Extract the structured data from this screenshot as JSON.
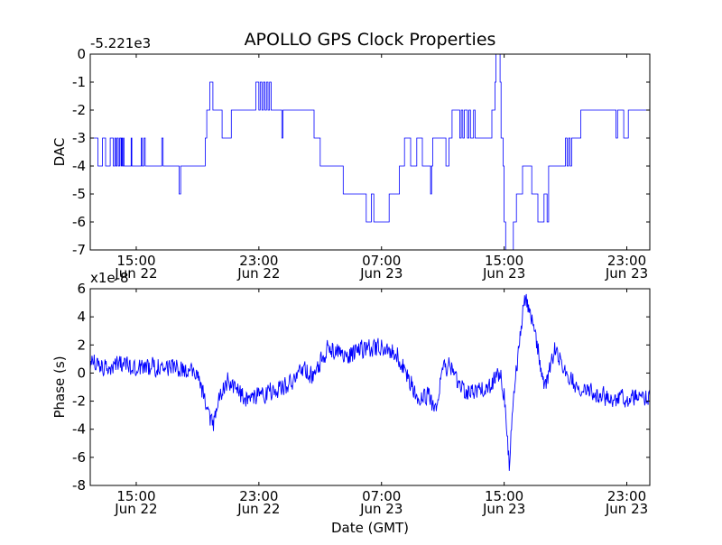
{
  "figure": {
    "title": "APOLLO GPS Clock Properties",
    "xlabel": "Date (GMT)"
  },
  "chart_data": [
    {
      "type": "line",
      "title": "APOLLO GPS Clock Properties",
      "ylabel": "DAC",
      "offset_label": "-5.221e3",
      "ylim": [
        -7,
        0
      ],
      "yticks": [
        0,
        -1,
        -2,
        -3,
        -4,
        -5,
        -6,
        -7
      ],
      "ytick_labels": [
        "0",
        "-1",
        "-2",
        "-3",
        "-4",
        "-5",
        "-6",
        "-7"
      ],
      "xlim": [
        "2010-06-22 12:00",
        "2010-06-24 00:30"
      ],
      "xticks": [
        {
          "x": "2010-06-22 15:00",
          "line1": "15:00",
          "line2": "Jun 22"
        },
        {
          "x": "2010-06-22 23:00",
          "line1": "23:00",
          "line2": "Jun 22"
        },
        {
          "x": "2010-06-23 07:00",
          "line1": "07:00",
          "line2": "Jun 23"
        },
        {
          "x": "2010-06-23 15:00",
          "line1": "15:00",
          "line2": "Jun 23"
        },
        {
          "x": "2010-06-23 23:00",
          "line1": "23:00",
          "line2": "Jun 23"
        }
      ],
      "color": "#0000ff",
      "grid": false,
      "series": [
        {
          "step": true,
          "points": [
            [
              "2010-06-22 12:06",
              -3
            ],
            [
              "2010-06-22 12:30",
              -4
            ],
            [
              "2010-06-22 12:48",
              -3
            ],
            [
              "2010-06-22 13:00",
              -4
            ],
            [
              "2010-06-22 13:18",
              -3
            ],
            [
              "2010-06-22 13:30",
              -4
            ],
            [
              "2010-06-22 13:36",
              -3
            ],
            [
              "2010-06-22 13:40",
              -4
            ],
            [
              "2010-06-22 13:45",
              -3
            ],
            [
              "2010-06-22 13:50",
              -4
            ],
            [
              "2010-06-22 13:55",
              -3
            ],
            [
              "2010-06-22 14:00",
              -4
            ],
            [
              "2010-06-22 14:03",
              -3
            ],
            [
              "2010-06-22 14:06",
              -4
            ],
            [
              "2010-06-22 14:10",
              -3
            ],
            [
              "2010-06-22 14:12",
              -4
            ],
            [
              "2010-06-22 14:40",
              -3
            ],
            [
              "2010-06-22 14:43",
              -4
            ],
            [
              "2010-06-22 15:20",
              -3
            ],
            [
              "2010-06-22 15:23",
              -4
            ],
            [
              "2010-06-22 15:30",
              -3
            ],
            [
              "2010-06-22 15:35",
              -4
            ],
            [
              "2010-06-22 16:40",
              -3
            ],
            [
              "2010-06-22 16:45",
              -4
            ],
            [
              "2010-06-22 17:48",
              -5
            ],
            [
              "2010-06-22 17:54",
              -4
            ],
            [
              "2010-06-22 19:30",
              -3
            ],
            [
              "2010-06-22 19:36",
              -2
            ],
            [
              "2010-06-22 19:48",
              -1
            ],
            [
              "2010-06-22 20:00",
              -2
            ],
            [
              "2010-06-22 20:36",
              -3
            ],
            [
              "2010-06-22 21:12",
              -2
            ],
            [
              "2010-06-22 22:48",
              -1
            ],
            [
              "2010-06-22 23:00",
              -2
            ],
            [
              "2010-06-22 23:05",
              -1
            ],
            [
              "2010-06-22 23:12",
              -2
            ],
            [
              "2010-06-22 23:18",
              -1
            ],
            [
              "2010-06-22 23:24",
              -2
            ],
            [
              "2010-06-22 23:30",
              -1
            ],
            [
              "2010-06-22 23:36",
              -2
            ],
            [
              "2010-06-22 23:42",
              -1
            ],
            [
              "2010-06-22 23:48",
              -2
            ],
            [
              "2010-06-23 00:30",
              -3
            ],
            [
              "2010-06-23 00:34",
              -2
            ],
            [
              "2010-06-23 02:36",
              -3
            ],
            [
              "2010-06-23 03:00",
              -4
            ],
            [
              "2010-06-23 04:30",
              -5
            ],
            [
              "2010-06-23 06:00",
              -6
            ],
            [
              "2010-06-23 06:20",
              -5
            ],
            [
              "2010-06-23 06:30",
              -6
            ],
            [
              "2010-06-23 07:30",
              -5
            ],
            [
              "2010-06-23 08:10",
              -4
            ],
            [
              "2010-06-23 08:30",
              -3
            ],
            [
              "2010-06-23 08:54",
              -4
            ],
            [
              "2010-06-23 09:18",
              -3
            ],
            [
              "2010-06-23 09:40",
              -4
            ],
            [
              "2010-06-23 10:12",
              -5
            ],
            [
              "2010-06-23 10:16",
              -4
            ],
            [
              "2010-06-23 10:20",
              -3
            ],
            [
              "2010-06-23 11:12",
              -4
            ],
            [
              "2010-06-23 11:24",
              -3
            ],
            [
              "2010-06-23 11:36",
              -2
            ],
            [
              "2010-06-23 12:06",
              -3
            ],
            [
              "2010-06-23 12:12",
              -2
            ],
            [
              "2010-06-23 12:18",
              -3
            ],
            [
              "2010-06-23 12:24",
              -2
            ],
            [
              "2010-06-23 12:36",
              -3
            ],
            [
              "2010-06-23 12:42",
              -2
            ],
            [
              "2010-06-23 12:48",
              -3
            ],
            [
              "2010-06-23 13:00",
              -2
            ],
            [
              "2010-06-23 13:06",
              -3
            ],
            [
              "2010-06-23 14:12",
              -2
            ],
            [
              "2010-06-23 14:24",
              -1
            ],
            [
              "2010-06-23 14:28",
              0
            ],
            [
              "2010-06-23 14:44",
              -1
            ],
            [
              "2010-06-23 14:48",
              -3
            ],
            [
              "2010-06-23 14:56",
              -4
            ],
            [
              "2010-06-23 15:00",
              -6
            ],
            [
              "2010-06-23 15:06",
              -7
            ],
            [
              "2010-06-23 15:36",
              -6
            ],
            [
              "2010-06-23 15:48",
              -5
            ],
            [
              "2010-06-23 16:12",
              -4
            ],
            [
              "2010-06-23 16:48",
              -5
            ],
            [
              "2010-06-23 17:12",
              -6
            ],
            [
              "2010-06-23 17:36",
              -5
            ],
            [
              "2010-06-23 17:48",
              -6
            ],
            [
              "2010-06-23 17:54",
              -4
            ],
            [
              "2010-06-23 19:00",
              -3
            ],
            [
              "2010-06-23 19:06",
              -4
            ],
            [
              "2010-06-23 19:12",
              -3
            ],
            [
              "2010-06-23 19:18",
              -4
            ],
            [
              "2010-06-23 19:24",
              -3
            ],
            [
              "2010-06-23 20:00",
              -2
            ],
            [
              "2010-06-23 22:18",
              -3
            ],
            [
              "2010-06-23 22:24",
              -2
            ],
            [
              "2010-06-23 22:48",
              -3
            ],
            [
              "2010-06-23 23:06",
              -2
            ],
            [
              "2010-06-24 00:30",
              -2
            ]
          ]
        }
      ]
    },
    {
      "type": "line",
      "ylabel": "Phase (s)",
      "offset_label": "x1e-8",
      "ylim": [
        -8,
        6
      ],
      "yticks": [
        6,
        4,
        2,
        0,
        -2,
        -4,
        -6,
        -8
      ],
      "ytick_labels": [
        "6",
        "4",
        "2",
        "0",
        "-2",
        "-4",
        "-6",
        "-8"
      ],
      "xlim": [
        "2010-06-22 12:00",
        "2010-06-24 00:30"
      ],
      "xticks": [
        {
          "x": "2010-06-22 15:00",
          "line1": "15:00",
          "line2": "Jun 22"
        },
        {
          "x": "2010-06-22 23:00",
          "line1": "23:00",
          "line2": "Jun 22"
        },
        {
          "x": "2010-06-23 07:00",
          "line1": "07:00",
          "line2": "Jun 23"
        },
        {
          "x": "2010-06-23 15:00",
          "line1": "15:00",
          "line2": "Jun 23"
        },
        {
          "x": "2010-06-23 23:00",
          "line1": "23:00",
          "line2": "Jun 23"
        }
      ],
      "color": "#0000ff",
      "grid": false,
      "series": [
        {
          "noise": 0.8,
          "points": [
            [
              "2010-06-22 12:00",
              0.8
            ],
            [
              "2010-06-22 13:00",
              0.5
            ],
            [
              "2010-06-22 14:00",
              0.6
            ],
            [
              "2010-06-22 15:00",
              0.3
            ],
            [
              "2010-06-22 16:30",
              0.5
            ],
            [
              "2010-06-22 18:00",
              0.3
            ],
            [
              "2010-06-22 19:00",
              0.0
            ],
            [
              "2010-06-22 19:30",
              -2.0
            ],
            [
              "2010-06-22 20:00",
              -3.8
            ],
            [
              "2010-06-22 20:30",
              -1.5
            ],
            [
              "2010-06-22 21:00",
              -0.5
            ],
            [
              "2010-06-22 22:00",
              -1.8
            ],
            [
              "2010-06-22 23:00",
              -1.6
            ],
            [
              "2010-06-23 00:00",
              -1.2
            ],
            [
              "2010-06-23 01:00",
              -0.8
            ],
            [
              "2010-06-23 02:00",
              0.3
            ],
            [
              "2010-06-23 02:30",
              -0.3
            ],
            [
              "2010-06-23 03:30",
              1.8
            ],
            [
              "2010-06-23 05:00",
              1.3
            ],
            [
              "2010-06-23 06:00",
              1.8
            ],
            [
              "2010-06-23 07:00",
              1.8
            ],
            [
              "2010-06-23 08:00",
              1.5
            ],
            [
              "2010-06-23 08:30",
              0.3
            ],
            [
              "2010-06-23 09:30",
              -2.0
            ],
            [
              "2010-06-23 10:00",
              -1.5
            ],
            [
              "2010-06-23 10:30",
              -2.6
            ],
            [
              "2010-06-23 11:00",
              0.3
            ],
            [
              "2010-06-23 11:30",
              0.5
            ],
            [
              "2010-06-23 12:00",
              -1.0
            ],
            [
              "2010-06-23 13:00",
              -1.5
            ],
            [
              "2010-06-23 14:00",
              -1.0
            ],
            [
              "2010-06-23 14:45",
              0.0
            ],
            [
              "2010-06-23 15:00",
              -1.5
            ],
            [
              "2010-06-23 15:20",
              -6.5
            ],
            [
              "2010-06-23 15:40",
              -1.0
            ],
            [
              "2010-06-23 16:20",
              5.5
            ],
            [
              "2010-06-23 17:00",
              3.0
            ],
            [
              "2010-06-23 17:40",
              -1.2
            ],
            [
              "2010-06-23 18:20",
              1.8
            ],
            [
              "2010-06-23 19:00",
              0.0
            ],
            [
              "2010-06-23 20:00",
              -1.2
            ],
            [
              "2010-06-23 21:00",
              -1.5
            ],
            [
              "2010-06-23 22:00",
              -1.8
            ],
            [
              "2010-06-23 23:00",
              -1.8
            ],
            [
              "2010-06-24 00:30",
              -1.6
            ]
          ]
        }
      ]
    }
  ]
}
